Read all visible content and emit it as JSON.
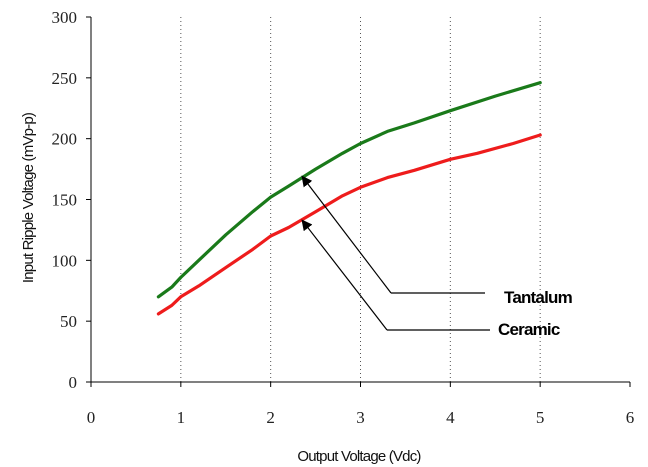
{
  "chart_data": {
    "type": "line",
    "title": "",
    "xlabel": "Output Voltage (Vdc)",
    "ylabel": "Input Ripple Voltage (mVp-p)",
    "xlim": [
      0,
      6
    ],
    "ylim": [
      0,
      300
    ],
    "x_ticks": [
      "0",
      "1",
      "2",
      "3",
      "4",
      "5",
      "6"
    ],
    "y_ticks": [
      "0",
      "50",
      "100",
      "150",
      "200",
      "250",
      "300"
    ],
    "grid": "vertical",
    "legend": "none",
    "series": [
      {
        "name": "Tantalum",
        "color": "#1a7a1a",
        "x": [
          0.75,
          0.9,
          1.0,
          1.2,
          1.5,
          1.8,
          2.0,
          2.2,
          2.5,
          2.8,
          3.0,
          3.3,
          3.6,
          4.0,
          4.5,
          5.0
        ],
        "y": [
          70,
          78,
          86,
          100,
          121,
          140,
          152,
          161,
          175,
          188,
          196,
          206,
          213,
          223,
          235,
          246
        ]
      },
      {
        "name": "Ceramic",
        "color": "#ee1c1c",
        "x": [
          0.75,
          0.9,
          1.0,
          1.2,
          1.5,
          1.8,
          2.0,
          2.2,
          2.5,
          2.8,
          3.0,
          3.3,
          3.6,
          4.0,
          4.3,
          4.7,
          5.0
        ],
        "y": [
          56,
          63,
          70,
          79,
          94,
          109,
          120,
          127,
          140,
          153,
          160,
          168,
          174,
          183,
          188,
          196,
          203
        ]
      }
    ],
    "annotations": [
      {
        "label": "Tantalum",
        "series": 0,
        "x": 2.35,
        "y": 169
      },
      {
        "label": "Ceramic",
        "series": 1,
        "x": 2.35,
        "y": 133
      }
    ]
  }
}
